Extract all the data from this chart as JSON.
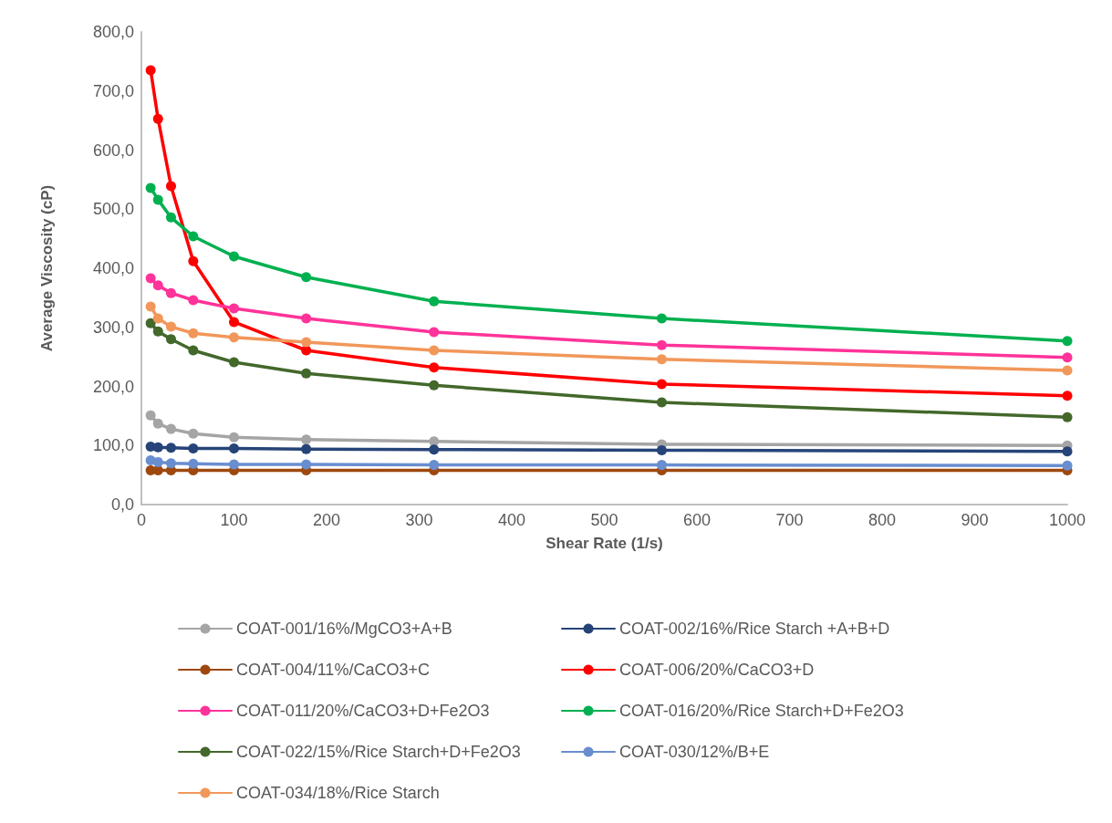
{
  "chart_data": {
    "type": "line",
    "xlabel": "Shear Rate (1/s)",
    "ylabel": "Average Viscosity (cP)",
    "x": [
      10,
      18,
      32,
      56,
      100,
      178,
      316,
      562,
      1000
    ],
    "xlim": [
      0,
      1000
    ],
    "xticks": [
      0,
      100,
      200,
      300,
      400,
      500,
      600,
      700,
      800,
      900,
      1000
    ],
    "ylim": [
      0,
      800
    ],
    "yticks": [
      {
        "value": 0,
        "label": "0,0"
      },
      {
        "value": 100,
        "label": "100,0"
      },
      {
        "value": 200,
        "label": "200,0"
      },
      {
        "value": 300,
        "label": "300,0"
      },
      {
        "value": 400,
        "label": "400,0"
      },
      {
        "value": 500,
        "label": "500,0"
      },
      {
        "value": 600,
        "label": "600,0"
      },
      {
        "value": 700,
        "label": "700,0"
      },
      {
        "value": 800,
        "label": "800,0"
      }
    ],
    "grid": false,
    "legend": "bottom",
    "marker": "circle",
    "line_style": "solid",
    "series": [
      {
        "name": "COAT-001/16%/MgCO3+A+B",
        "color": "#a5a5a5",
        "values": [
          151,
          137,
          128,
          120,
          114,
          110,
          107,
          102,
          100
        ]
      },
      {
        "name": "COAT-002/16%/Rice Starch +A+B+D",
        "color": "#264478",
        "values": [
          98,
          97,
          96,
          95,
          95,
          94,
          93,
          92,
          90
        ]
      },
      {
        "name": "COAT-004/11%/CaCO3+C",
        "color": "#9e480e",
        "values": [
          58,
          58,
          58,
          58,
          58,
          58,
          58,
          58,
          58
        ]
      },
      {
        "name": "COAT-006/20%/CaCO3+D",
        "color": "#ff0000",
        "values": [
          735,
          653,
          539,
          412,
          309,
          261,
          232,
          204,
          184
        ]
      },
      {
        "name": "COAT-011/20%/CaCO3+D+Fe2O3",
        "color": "#ff3399",
        "values": [
          383,
          371,
          358,
          346,
          332,
          315,
          292,
          270,
          249
        ]
      },
      {
        "name": "COAT-016/20%/Rice Starch+D+Fe2O3",
        "color": "#00b050",
        "values": [
          536,
          516,
          486,
          454,
          420,
          385,
          344,
          315,
          277
        ]
      },
      {
        "name": "COAT-022/15%/Rice Starch+D+Fe2O3",
        "color": "#43682b",
        "values": [
          307,
          293,
          280,
          261,
          241,
          222,
          202,
          173,
          148
        ]
      },
      {
        "name": "COAT-030/12%/B+E",
        "color": "#698ed0",
        "values": [
          75,
          72,
          70,
          69,
          68,
          68,
          67,
          67,
          66
        ]
      },
      {
        "name": "COAT-034/18%/Rice Starch",
        "color": "#f1975a",
        "values": [
          335,
          315,
          301,
          290,
          283,
          275,
          261,
          246,
          227
        ]
      }
    ]
  }
}
